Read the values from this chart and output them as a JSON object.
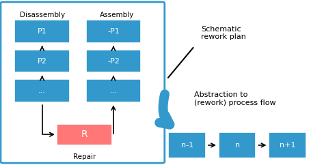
{
  "box_blue": "#3399CC",
  "red_color": "#FF7777",
  "border_blue": "#3399CC",
  "text_black": "#000000",
  "text_white": "#FFFFFF",
  "bg_white": "#FFFFFF",
  "disassembly_label": "Disassembly",
  "assembly_label": "Assembly",
  "repair_label": "Repair",
  "schematic_label": "Schematic\nrework plan",
  "abstraction_label": "Abstraction to\n(rework) process flow",
  "left_boxes": [
    "P1",
    "P2",
    "..."
  ],
  "right_boxes": [
    "-P1",
    "-P2",
    "..."
  ],
  "bottom_boxes": [
    "n-1",
    "n",
    "n+1"
  ],
  "repair_box": "R",
  "fig_width": 4.74,
  "fig_height": 2.42,
  "dpi": 100
}
